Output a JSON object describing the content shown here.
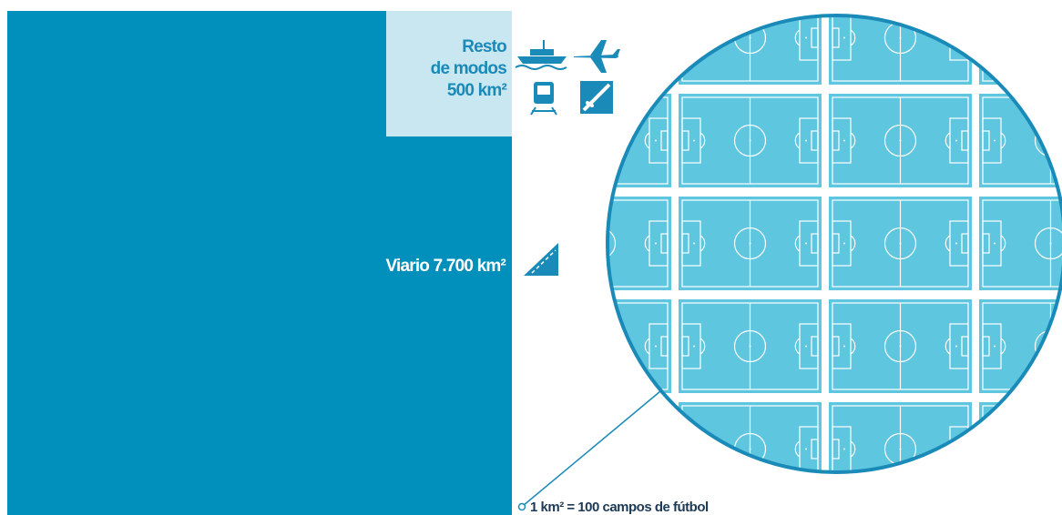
{
  "resto": {
    "lines": [
      "Resto",
      "de modos",
      "500 km²"
    ]
  },
  "viario": "Viario 7.700 km²",
  "scale_note": "1 km² = 100 campos de fútbol"
}
